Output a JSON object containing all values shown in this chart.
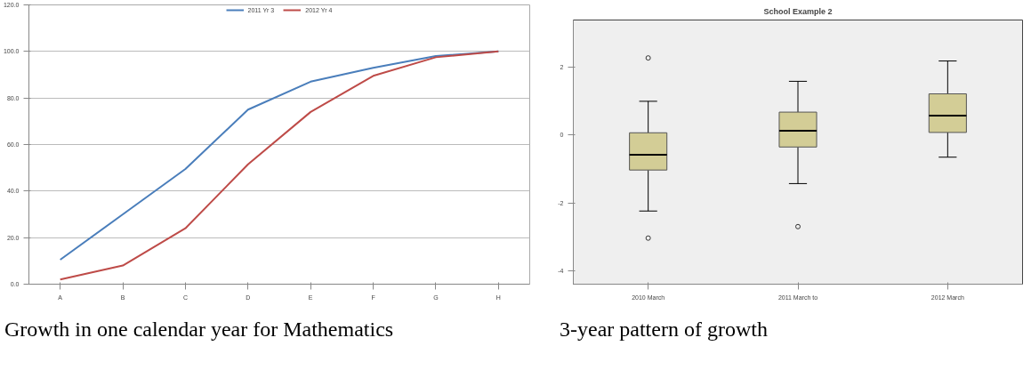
{
  "chart_data": [
    {
      "type": "line",
      "categories": [
        "A",
        "B",
        "C",
        "D",
        "E",
        "F",
        "G",
        "H"
      ],
      "series": [
        {
          "name": "2011 Yr 3",
          "color": "#4a7ebb",
          "values": [
            10.5,
            30,
            49.5,
            75,
            87,
            93,
            98,
            100
          ]
        },
        {
          "name": "2012 Yr 4",
          "color": "#be4b48",
          "values": [
            2,
            8,
            24,
            51.5,
            74,
            89.5,
            97.5,
            100
          ]
        }
      ],
      "ylim": [
        0,
        120
      ],
      "yticks": [
        {
          "value": 0,
          "label": "0.0"
        },
        {
          "value": 20,
          "label": "20.0"
        },
        {
          "value": 40,
          "label": "40.0"
        },
        {
          "value": 60,
          "label": "60.0"
        },
        {
          "value": 80,
          "label": "80.0"
        },
        {
          "value": 100,
          "label": "100.0"
        },
        {
          "value": 120,
          "label": "120.0"
        }
      ],
      "grid": "y",
      "legend": "top",
      "marker": "none",
      "line_style": "solid",
      "annotations": [
        "Growth in one calendar year for Mathematics"
      ]
    },
    {
      "type": "box",
      "title": "School Example 2",
      "categories": [
        "2010 March",
        "2011 March to",
        "2012 March"
      ],
      "series": [
        {
          "color": "#d3cd96",
          "boxes": [
            {
              "low": -2.24,
              "q1": -1.03,
              "median": -0.58,
              "q3": 0.07,
              "high": 1.0,
              "outliers": [
                2.28,
                -3.04
              ]
            },
            {
              "low": -1.43,
              "q1": -0.35,
              "median": 0.13,
              "q3": 0.68,
              "high": 1.59,
              "outliers": [
                -2.7
              ]
            },
            {
              "low": -0.65,
              "q1": 0.08,
              "median": 0.58,
              "q3": 1.22,
              "high": 2.19
            }
          ]
        }
      ],
      "ylim": [
        -4.4,
        3.4
      ],
      "yticks": [
        -4,
        -2,
        0,
        2
      ],
      "grid": false,
      "annotations": [
        "3-year pattern of growth"
      ]
    }
  ]
}
